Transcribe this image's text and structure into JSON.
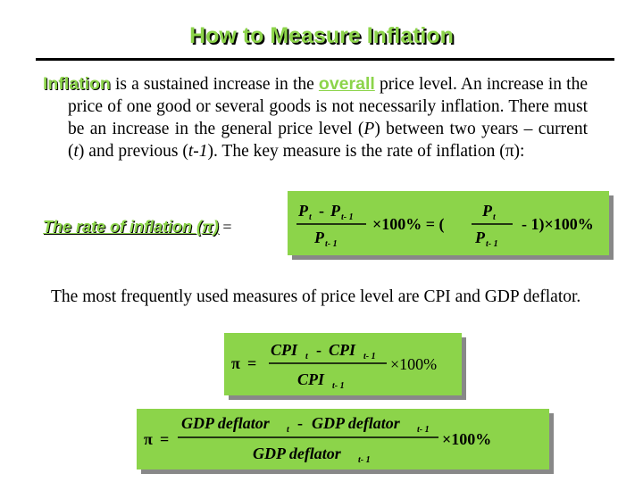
{
  "title": "How to Measure Inflation",
  "definition": {
    "term": "Inflation",
    "text_1": " is a sustained increase in the ",
    "highlight": "overall",
    "text_2": " price level. An increase in the price of one good or several goods is not necessarily inflation. There must be an increase in the general price level (",
    "P": "P",
    "text_3": ") between two years – current (",
    "t": "t",
    "text_4": ") and previous (",
    "t_minus_1": "t-1",
    "text_5": "). The key measure is the rate of inflation (π):"
  },
  "rate_label": "The rate of inflation (π)",
  "rate_equals": " =",
  "measures_text": "The most frequently used measures of price level are CPI and GDP deflator.",
  "formula_1": {
    "num_left": "P",
    "sub_t": "t",
    "minus": "-",
    "sub_t1": "t- 1",
    "times_100": "×100% = (",
    "minus_1": "-  1)×100%"
  },
  "formula_2": {
    "pi": "π",
    "equals": "=",
    "cpi": "CPI",
    "sub_t": "t",
    "sub_t1": "t- 1",
    "minus": "-",
    "times_100": "×100%"
  },
  "formula_3": {
    "pi": "π",
    "equals": "=",
    "gdp": "GDP deflator",
    "sub_t": "t",
    "sub_t1": "t- 1",
    "minus": "-",
    "times_100": "×100%"
  },
  "colors": {
    "accent": "#8cd44a",
    "shadow": "#888888"
  }
}
